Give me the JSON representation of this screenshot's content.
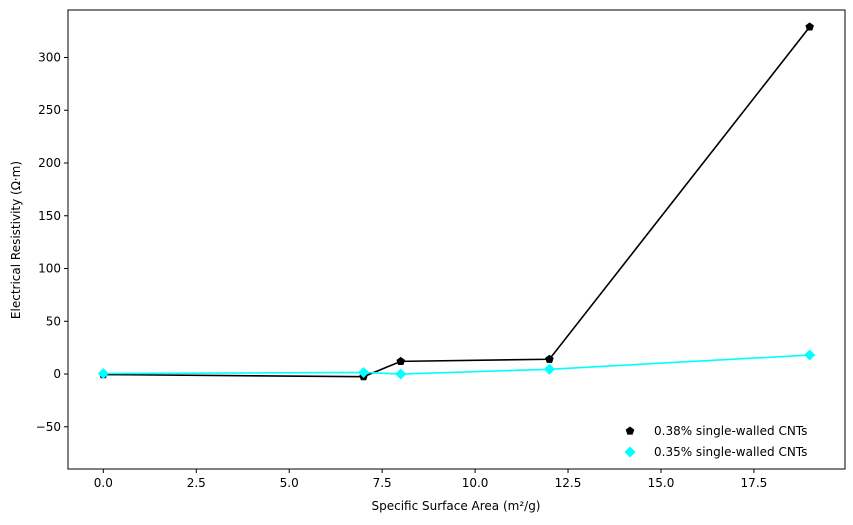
{
  "chart_data": {
    "type": "line",
    "xlabel": "Specific Surface Area (m²/g)",
    "ylabel": "Electrical Resistivity (Ω·m)",
    "xlim": [
      -0.95,
      19.95
    ],
    "ylim": [
      -90,
      345
    ],
    "x_ticks": [
      0.0,
      2.5,
      5.0,
      7.5,
      10.0,
      12.5,
      15.0,
      17.5
    ],
    "x_tick_labels": [
      "0.0",
      "2.5",
      "5.0",
      "7.5",
      "10.0",
      "12.5",
      "15.0",
      "17.5"
    ],
    "y_ticks": [
      -50,
      0,
      50,
      100,
      150,
      200,
      250,
      300
    ],
    "y_tick_labels": [
      "−50",
      "0",
      "50",
      "100",
      "150",
      "200",
      "250",
      "300"
    ],
    "grid": false,
    "legend_position": "lower-right",
    "series": [
      {
        "name": "0.38% single-walled CNTs",
        "marker": "pentagon",
        "color": "#000000",
        "x": [
          0,
          7,
          8,
          12,
          19
        ],
        "y": [
          -0.5,
          -2.5,
          12,
          14,
          329
        ]
      },
      {
        "name": "0.35% single-walled CNTs",
        "marker": "diamond",
        "color": "#00ffff",
        "x": [
          0,
          7,
          8,
          12,
          19
        ],
        "y": [
          0.5,
          1.5,
          0,
          4.5,
          18
        ]
      }
    ]
  }
}
